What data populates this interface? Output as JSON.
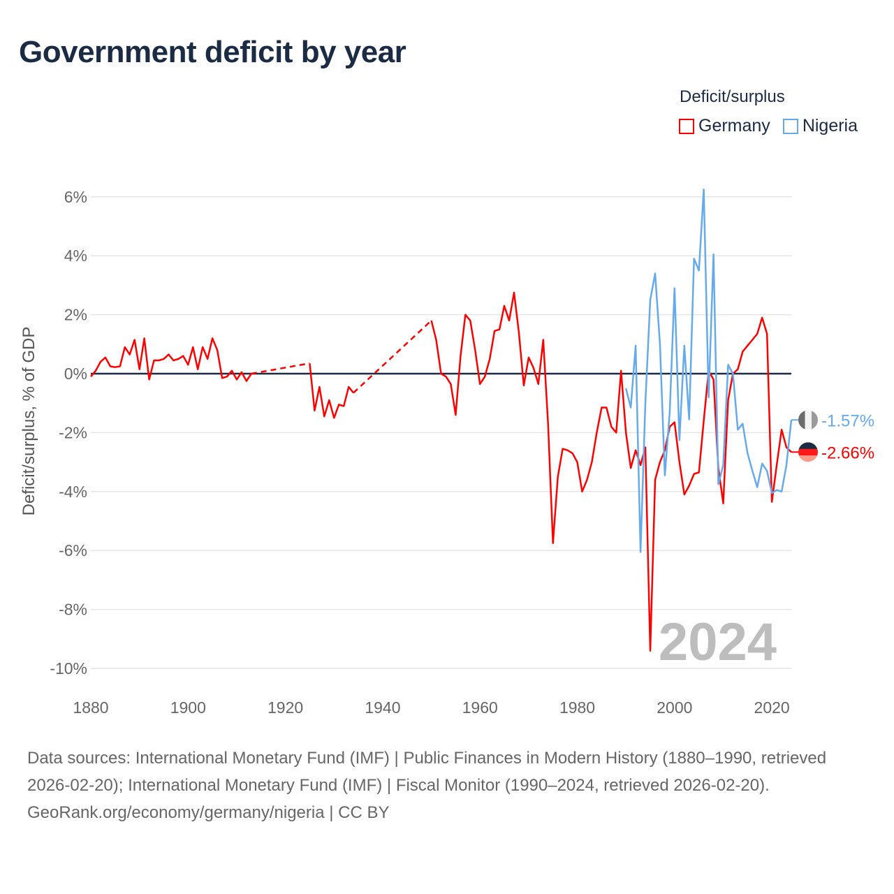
{
  "title": "Government deficit by year",
  "legend": {
    "title": "Deficit/surplus",
    "items": [
      {
        "label": "Germany",
        "color": "#ff0000"
      },
      {
        "label": "Nigeria",
        "color": "#66aaee"
      }
    ]
  },
  "footer": {
    "sources": "Data sources: International Monetary Fund (IMF) | Public Finances in Modern History (1880–1990, retrieved 2026-02-20); International Monetary Fund (IMF) | Fiscal Monitor (1990–2024, retrieved 2026-02-20).",
    "credit": "GeoRank.org/economy/germany/nigeria | CC BY"
  },
  "chart_data": {
    "type": "line",
    "title": "Government deficit by year",
    "xlabel": "",
    "ylabel": "Deficit/surplus, % of GDP",
    "xlim": [
      1880,
      2024
    ],
    "ylim": [
      -10,
      6.3
    ],
    "x_ticks": [
      "1880",
      "1900",
      "1920",
      "1940",
      "1960",
      "1980",
      "2000",
      "2020"
    ],
    "y_ticks": [
      "6%",
      "4%",
      "2%",
      "0%",
      "-2%",
      "-4%",
      "-6%",
      "-8%",
      "-10%"
    ],
    "year_watermark": "2024",
    "grid": true,
    "legend_position": "top-right",
    "series": [
      {
        "name": "Germany",
        "color": "#ff0000",
        "end_label": "-2.66%",
        "dashed_gaps": [
          [
            1913,
            1925
          ],
          [
            1934,
            1950
          ]
        ],
        "points": [
          [
            1880,
            -0.1
          ],
          [
            1881,
            0.1
          ],
          [
            1882,
            0.4
          ],
          [
            1883,
            0.55
          ],
          [
            1884,
            0.25
          ],
          [
            1885,
            0.22
          ],
          [
            1886,
            0.25
          ],
          [
            1887,
            0.9
          ],
          [
            1888,
            0.65
          ],
          [
            1889,
            1.15
          ],
          [
            1890,
            0.15
          ],
          [
            1891,
            1.2
          ],
          [
            1892,
            -0.2
          ],
          [
            1893,
            0.45
          ],
          [
            1894,
            0.45
          ],
          [
            1895,
            0.5
          ],
          [
            1896,
            0.65
          ],
          [
            1897,
            0.45
          ],
          [
            1898,
            0.5
          ],
          [
            1899,
            0.6
          ],
          [
            1900,
            0.3
          ],
          [
            1901,
            0.9
          ],
          [
            1902,
            0.15
          ],
          [
            1903,
            0.9
          ],
          [
            1904,
            0.5
          ],
          [
            1905,
            1.2
          ],
          [
            1906,
            0.8
          ],
          [
            1907,
            -0.15
          ],
          [
            1908,
            -0.1
          ],
          [
            1909,
            0.1
          ],
          [
            1910,
            -0.2
          ],
          [
            1911,
            0.05
          ],
          [
            1912,
            -0.25
          ],
          [
            1913,
            0.0
          ],
          [
            1925,
            0.35
          ],
          [
            1926,
            -1.25
          ],
          [
            1927,
            -0.45
          ],
          [
            1928,
            -1.45
          ],
          [
            1929,
            -0.9
          ],
          [
            1930,
            -1.5
          ],
          [
            1931,
            -1.05
          ],
          [
            1932,
            -1.1
          ],
          [
            1933,
            -0.45
          ],
          [
            1934,
            -0.65
          ],
          [
            1950,
            1.8
          ],
          [
            1951,
            1.15
          ],
          [
            1952,
            0.0
          ],
          [
            1953,
            -0.1
          ],
          [
            1954,
            -0.35
          ],
          [
            1955,
            -1.4
          ],
          [
            1956,
            0.6
          ],
          [
            1957,
            2.0
          ],
          [
            1958,
            1.8
          ],
          [
            1959,
            0.8
          ],
          [
            1960,
            -0.35
          ],
          [
            1961,
            -0.1
          ],
          [
            1962,
            0.5
          ],
          [
            1963,
            1.45
          ],
          [
            1964,
            1.5
          ],
          [
            1965,
            2.3
          ],
          [
            1966,
            1.8
          ],
          [
            1967,
            2.75
          ],
          [
            1968,
            1.4
          ],
          [
            1969,
            -0.4
          ],
          [
            1970,
            0.55
          ],
          [
            1971,
            0.2
          ],
          [
            1972,
            -0.35
          ],
          [
            1973,
            1.15
          ],
          [
            1974,
            -1.7
          ],
          [
            1975,
            -5.75
          ],
          [
            1976,
            -3.5
          ],
          [
            1977,
            -2.55
          ],
          [
            1978,
            -2.6
          ],
          [
            1979,
            -2.7
          ],
          [
            1980,
            -3.0
          ],
          [
            1981,
            -4.0
          ],
          [
            1982,
            -3.6
          ],
          [
            1983,
            -3.0
          ],
          [
            1984,
            -2.0
          ],
          [
            1985,
            -1.15
          ],
          [
            1986,
            -1.15
          ],
          [
            1987,
            -1.8
          ],
          [
            1988,
            -2.0
          ],
          [
            1989,
            0.1
          ],
          [
            1990,
            -2.0
          ],
          [
            1991,
            -3.2
          ],
          [
            1992,
            -2.6
          ],
          [
            1993,
            -3.1
          ],
          [
            1994,
            -2.5
          ],
          [
            1995,
            -9.4
          ],
          [
            1996,
            -3.6
          ],
          [
            1997,
            -3.0
          ],
          [
            1998,
            -2.6
          ],
          [
            1999,
            -1.8
          ],
          [
            2000,
            -1.65
          ],
          [
            2001,
            -3.0
          ],
          [
            2002,
            -4.1
          ],
          [
            2003,
            -3.8
          ],
          [
            2004,
            -3.4
          ],
          [
            2005,
            -3.35
          ],
          [
            2006,
            -1.6
          ],
          [
            2007,
            0.1
          ],
          [
            2008,
            -0.2
          ],
          [
            2009,
            -3.2
          ],
          [
            2010,
            -4.4
          ],
          [
            2011,
            -0.9
          ],
          [
            2012,
            0.0
          ],
          [
            2013,
            0.15
          ],
          [
            2014,
            0.75
          ],
          [
            2015,
            0.95
          ],
          [
            2016,
            1.15
          ],
          [
            2017,
            1.35
          ],
          [
            2018,
            1.9
          ],
          [
            2019,
            1.35
          ],
          [
            2020,
            -4.35
          ],
          [
            2021,
            -3.1
          ],
          [
            2022,
            -1.9
          ],
          [
            2023,
            -2.5
          ],
          [
            2024,
            -2.66
          ]
        ]
      },
      {
        "name": "Nigeria",
        "color": "#66aaee",
        "end_label": "-1.57%",
        "dashed_gaps": [],
        "points": [
          [
            1990,
            -0.5
          ],
          [
            1991,
            -1.15
          ],
          [
            1992,
            0.95
          ],
          [
            1993,
            -6.05
          ],
          [
            1994,
            -1.0
          ],
          [
            1995,
            2.5
          ],
          [
            1996,
            3.4
          ],
          [
            1997,
            1.0
          ],
          [
            1998,
            -3.45
          ],
          [
            1999,
            -1.3
          ],
          [
            2000,
            2.9
          ],
          [
            2001,
            -2.25
          ],
          [
            2002,
            0.95
          ],
          [
            2003,
            -1.55
          ],
          [
            2004,
            3.9
          ],
          [
            2005,
            3.5
          ],
          [
            2006,
            6.25
          ],
          [
            2007,
            -0.8
          ],
          [
            2008,
            4.05
          ],
          [
            2009,
            -3.75
          ],
          [
            2010,
            -3.1
          ],
          [
            2011,
            0.3
          ],
          [
            2012,
            0.0
          ],
          [
            2013,
            -1.9
          ],
          [
            2014,
            -1.7
          ],
          [
            2015,
            -2.7
          ],
          [
            2016,
            -3.3
          ],
          [
            2017,
            -3.85
          ],
          [
            2018,
            -3.05
          ],
          [
            2019,
            -3.3
          ],
          [
            2020,
            -4.05
          ],
          [
            2021,
            -3.95
          ],
          [
            2022,
            -4.0
          ],
          [
            2023,
            -3.1
          ],
          [
            2024,
            -1.57
          ]
        ]
      }
    ]
  }
}
